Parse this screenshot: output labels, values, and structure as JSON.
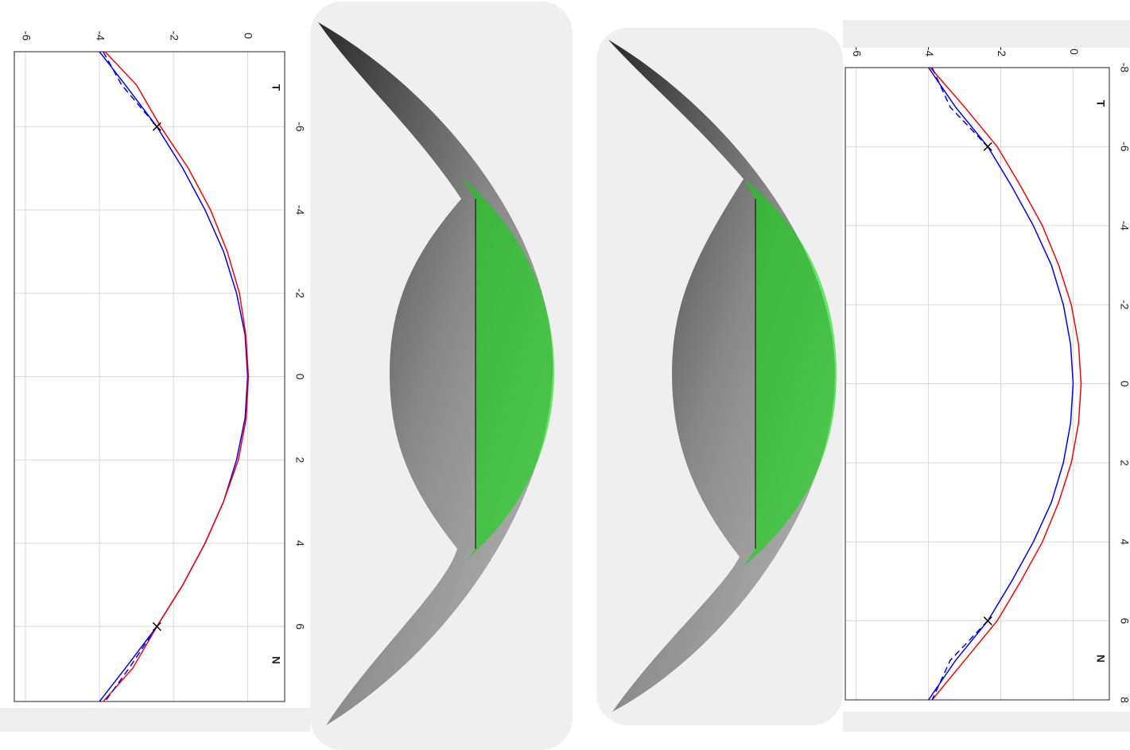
{
  "chart_data": [
    {
      "type": "line",
      "xlim": [
        -7.8,
        7.8
      ],
      "ylim": [
        -6.3,
        1
      ],
      "xticks": [
        -6,
        -4,
        -2,
        0,
        2,
        4,
        6
      ],
      "yticks": [
        -6,
        -4,
        -2,
        0
      ],
      "grid": true,
      "annotations": [
        "T",
        "N"
      ],
      "x": [
        -7.8,
        -7,
        -6,
        -5,
        -4,
        -3,
        -2,
        -1,
        0,
        1,
        2,
        3,
        4,
        5,
        6,
        7,
        7.8
      ],
      "series": [
        {
          "color": "#0000ff",
          "style": "solid",
          "values": [
            -4.0,
            -3.3,
            -2.45,
            -1.75,
            -1.15,
            -0.65,
            -0.3,
            -0.07,
            0,
            -0.07,
            -0.3,
            -0.65,
            -1.15,
            -1.75,
            -2.45,
            -3.3,
            -4.0
          ]
        },
        {
          "color": "#ff0000",
          "style": "solid",
          "values": [
            -3.85,
            -3.0,
            -2.35,
            -1.6,
            -1.0,
            -0.55,
            -0.22,
            -0.05,
            0.02,
            -0.04,
            -0.25,
            -0.65,
            -1.15,
            -1.75,
            -2.45,
            -3.1,
            -3.9
          ]
        },
        {
          "color": "#0000ff",
          "style": "dashed",
          "values": [
            -3.9,
            -3.4,
            -2.45,
            null,
            null,
            null,
            null,
            null,
            null,
            null,
            null,
            null,
            null,
            null,
            -2.45,
            -3.2,
            -3.85
          ]
        }
      ],
      "markers": {
        "color": "#000000",
        "x": [
          -6,
          6
        ],
        "values": [
          -2.45,
          -2.45
        ]
      }
    },
    {
      "type": "line",
      "xlim": [
        -8,
        8
      ],
      "ylim": [
        -6.3,
        1
      ],
      "xticks": [
        -8,
        -6,
        -4,
        -2,
        0,
        2,
        4,
        6,
        8
      ],
      "yticks": [
        -6,
        -4,
        -2,
        0
      ],
      "grid": true,
      "annotations": [
        "T",
        "N"
      ],
      "x": [
        -8,
        -7,
        -6,
        -5,
        -4,
        -3,
        -2,
        -1,
        0,
        1,
        2,
        3,
        4,
        5,
        6,
        7,
        8
      ],
      "series": [
        {
          "color": "#0000ff",
          "style": "solid",
          "values": [
            -4.0,
            -3.25,
            -2.36,
            -1.7,
            -1.1,
            -0.6,
            -0.27,
            -0.07,
            0,
            -0.07,
            -0.27,
            -0.6,
            -1.1,
            -1.7,
            -2.36,
            -3.25,
            -4.0
          ]
        },
        {
          "color": "#ff0000",
          "style": "solid",
          "values": [
            -3.95,
            -3.0,
            -2.1,
            -1.45,
            -0.85,
            -0.4,
            -0.05,
            0.15,
            0.22,
            0.15,
            -0.05,
            -0.4,
            -0.85,
            -1.45,
            -2.1,
            -3.0,
            -3.9
          ]
        },
        {
          "color": "#0000ff",
          "style": "dashed",
          "values": [
            -3.9,
            -3.4,
            -2.36,
            null,
            null,
            null,
            null,
            null,
            null,
            null,
            null,
            null,
            null,
            null,
            -2.36,
            -3.4,
            -3.9
          ]
        }
      ],
      "markers": {
        "color": "#000000",
        "x": [
          -6,
          6
        ],
        "values": [
          -2.36,
          -2.36
        ]
      }
    }
  ]
}
